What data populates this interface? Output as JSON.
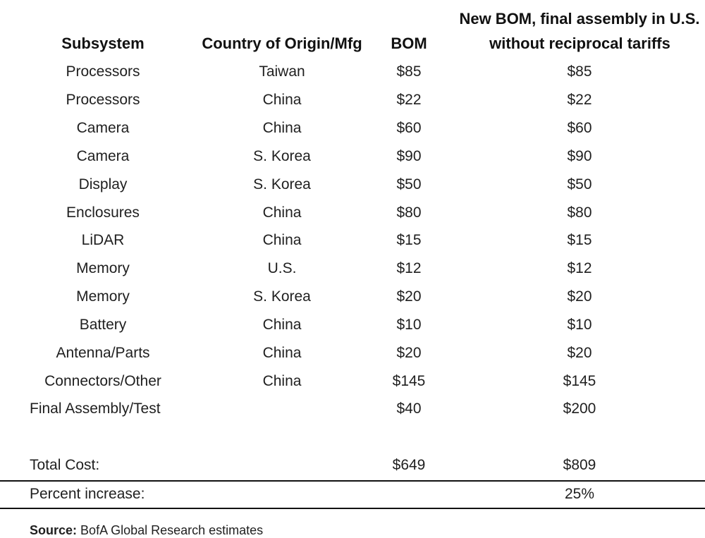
{
  "headers": {
    "subsystem": "Subsystem",
    "country": "Country of Origin/Mfg",
    "bom": "BOM",
    "new_bom_line1": "New BOM, final assembly in U.S.",
    "new_bom_line2": "without reciprocal tariffs"
  },
  "rows": [
    {
      "subsystem": "Processors",
      "country": "Taiwan",
      "bom": "$85",
      "new_bom": "$85"
    },
    {
      "subsystem": "Processors",
      "country": "China",
      "bom": "$22",
      "new_bom": "$22"
    },
    {
      "subsystem": "Camera",
      "country": "China",
      "bom": "$60",
      "new_bom": "$60"
    },
    {
      "subsystem": "Camera",
      "country": "S. Korea",
      "bom": "$90",
      "new_bom": "$90"
    },
    {
      "subsystem": "Display",
      "country": "S. Korea",
      "bom": "$50",
      "new_bom": "$50"
    },
    {
      "subsystem": "Enclosures",
      "country": "China",
      "bom": "$80",
      "new_bom": "$80"
    },
    {
      "subsystem": "LiDAR",
      "country": "China",
      "bom": "$15",
      "new_bom": "$15"
    },
    {
      "subsystem": "Memory",
      "country": "U.S.",
      "bom": "$12",
      "new_bom": "$12"
    },
    {
      "subsystem": "Memory",
      "country": "S. Korea",
      "bom": "$20",
      "new_bom": "$20"
    },
    {
      "subsystem": "Battery",
      "country": "China",
      "bom": "$10",
      "new_bom": "$10"
    },
    {
      "subsystem": "Antenna/Parts",
      "country": "China",
      "bom": "$20",
      "new_bom": "$20"
    },
    {
      "subsystem": "Connectors/Other",
      "country": "China",
      "bom": "$145",
      "new_bom": "$145"
    }
  ],
  "final_assembly": {
    "label": "Final Assembly/Test",
    "bom": "$40",
    "new_bom": "$200"
  },
  "total": {
    "label": "Total Cost:",
    "bom": "$649",
    "new_bom": "$809"
  },
  "increase": {
    "label": "Percent increase:",
    "value": "25%"
  },
  "source": {
    "label": "Source:",
    "text": "BofA Global Research estimates"
  }
}
